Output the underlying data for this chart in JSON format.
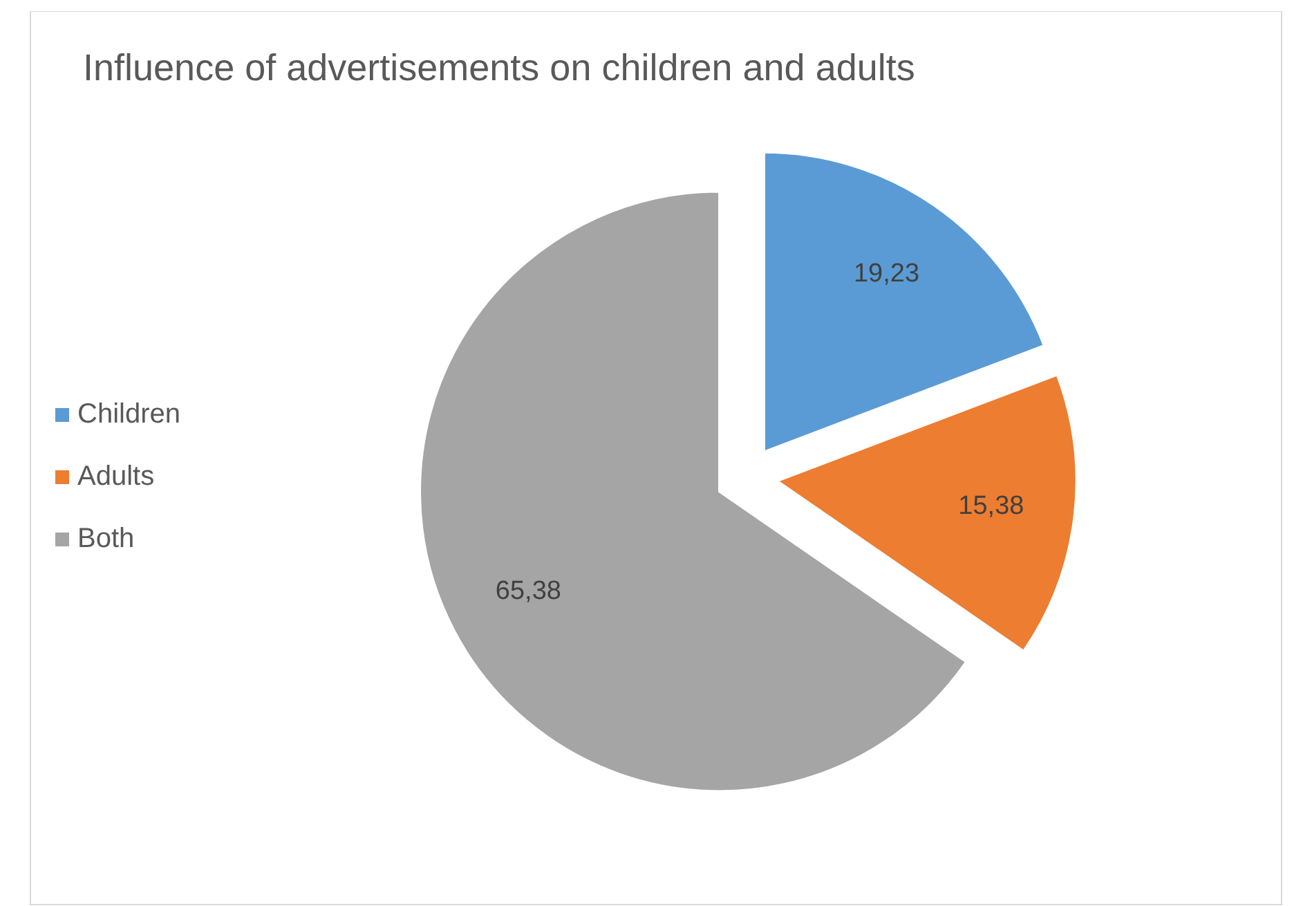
{
  "chart_data": {
    "type": "pie",
    "title": "Influence of advertisements on children and adults",
    "categories": [
      "Children",
      "Adults",
      "Both"
    ],
    "values": [
      19.23,
      15.38,
      65.38
    ],
    "value_labels": [
      "19,23",
      "15,38",
      "65,38"
    ],
    "colors": [
      "#5b9bd5",
      "#ed7d31",
      "#a5a5a5"
    ],
    "legend": "left"
  }
}
